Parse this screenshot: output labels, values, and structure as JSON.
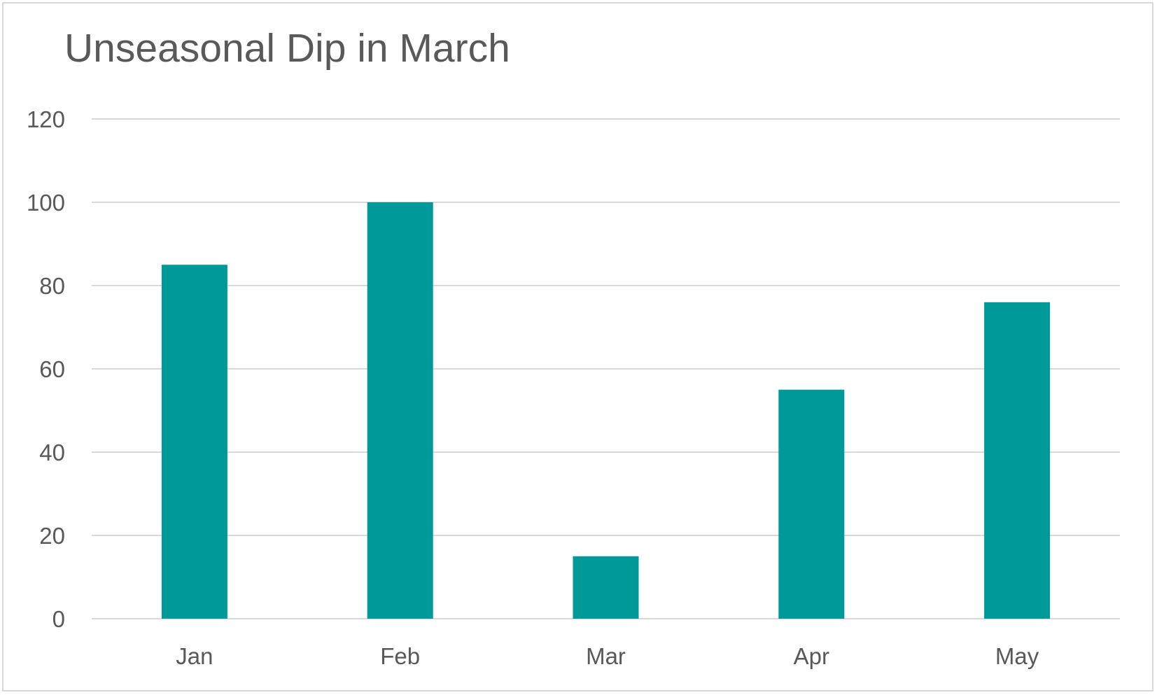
{
  "chart_data": {
    "type": "bar",
    "title": "Unseasonal Dip in March",
    "categories": [
      "Jan",
      "Feb",
      "Mar",
      "Apr",
      "May"
    ],
    "values": [
      85,
      100,
      15,
      55,
      76
    ],
    "xlabel": "",
    "ylabel": "",
    "ylim": [
      0,
      120
    ],
    "yticks": [
      "0",
      "20",
      "40",
      "60",
      "80",
      "100",
      "120"
    ],
    "grid": true,
    "legend": "none",
    "bar_color": "#009999",
    "grid_color": "#d9d9d9",
    "text_color": "#595959"
  }
}
